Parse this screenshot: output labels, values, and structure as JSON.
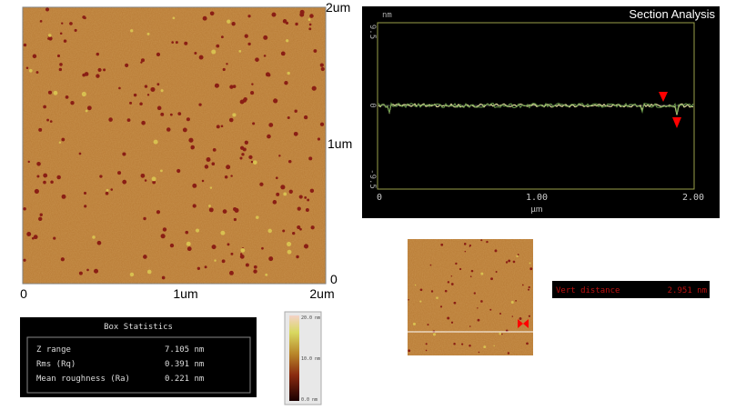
{
  "afm_image": {
    "y_labels": [
      "2um",
      "1um",
      "0"
    ],
    "x_labels": [
      "0",
      "1um",
      "2um"
    ]
  },
  "section_analysis": {
    "title": "Section Analysis",
    "y_unit": "nm",
    "y_labels": [
      "9.5",
      "0",
      "-9.5"
    ],
    "x_labels": [
      "0",
      "1.00",
      "2.00"
    ],
    "x_unit": "µm"
  },
  "box_statistics": {
    "title": "Box Statistics",
    "rows": [
      [
        "Z range",
        "7.105 nm"
      ],
      [
        "Rms (Rq)",
        "0.391 nm"
      ],
      [
        "Mean roughness (Ra)",
        "0.221 nm"
      ]
    ]
  },
  "color_bar": {
    "labels": [
      "20.0 nm",
      "10.0 nm",
      "0.0 nm"
    ]
  },
  "measurement": {
    "label": "Vert distance",
    "value": "2.951 nm"
  }
}
